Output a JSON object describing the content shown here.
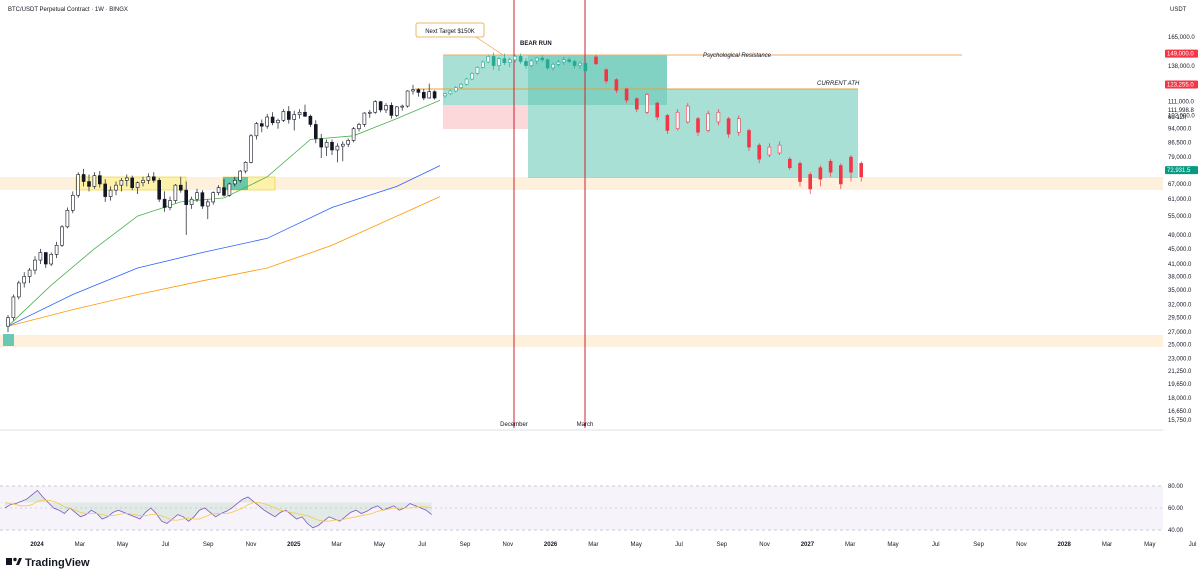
{
  "header": {
    "title": "BTC/USDT Perpetual Contract · 1W · BINGX",
    "currency": "USDT"
  },
  "branding": {
    "name": "TradingView"
  },
  "chart_data": {
    "type": "candlestick",
    "title": "BTC/USDT Perpetual Contract · 1W · BINGX",
    "price_axis": {
      "scale": "log",
      "ticks": [
        "165,000.0",
        "149,000.0",
        "138,000.0",
        "123,000.0",
        "111,000.0",
        "102,000.0",
        "94,000.0",
        "86,500.0",
        "79,000.0",
        "73,000.0",
        "67,000.0",
        "61,000.0",
        "55,000.0",
        "49,000.0",
        "45,000.0",
        "41,000.0",
        "38,000.0",
        "35,000.0",
        "32,000.0",
        "29,500.0",
        "27,000.0",
        "25,000.0",
        "23,000.0",
        "21,250.0",
        "19,650.0",
        "18,000.0",
        "16,650.0",
        "15,750.0"
      ],
      "price_tags": [
        {
          "value": "149,000.0",
          "color": "#f23645"
        },
        {
          "value": "123,255.0",
          "color": "#f23645"
        },
        {
          "value": "72,931.5",
          "color": "#089981"
        }
      ],
      "hint_lines": [
        "111,998.8",
        "6d 12h"
      ]
    },
    "time_axis": [
      "2024",
      "Mar",
      "May",
      "Jul",
      "Sep",
      "Nov",
      "2025",
      "Mar",
      "May",
      "Jul",
      "Sep",
      "Nov",
      "2026",
      "Mar",
      "May",
      "Jul",
      "Sep",
      "Nov",
      "2027",
      "Mar",
      "May",
      "Jul",
      "Sep",
      "Nov",
      "2028",
      "Mar",
      "May",
      "Jul"
    ],
    "annotations": {
      "next_target": "Next Target $150K",
      "bear_run": "BEAR RUN",
      "psych_resistance": "Psychological Resistance",
      "current_ath": "CURRENT ATH",
      "december": "December",
      "march": "March"
    },
    "historical_candles": [
      [
        28000,
        30000,
        27000,
        29500
      ],
      [
        29500,
        34000,
        29000,
        33500
      ],
      [
        33500,
        37000,
        33000,
        36500
      ],
      [
        36500,
        39000,
        35500,
        38000
      ],
      [
        38000,
        40000,
        36500,
        39500
      ],
      [
        39500,
        43000,
        38500,
        42000
      ],
      [
        42000,
        45000,
        41000,
        44000
      ],
      [
        44000,
        42500,
        40000,
        41000
      ],
      [
        41000,
        44000,
        40500,
        43500
      ],
      [
        43500,
        47000,
        42500,
        46000
      ],
      [
        46000,
        52000,
        45500,
        51500
      ],
      [
        51500,
        58000,
        51000,
        57000
      ],
      [
        57000,
        64000,
        56000,
        62500
      ],
      [
        62500,
        72000,
        61500,
        71000
      ],
      [
        71000,
        73500,
        66000,
        68000
      ],
      [
        68000,
        71000,
        64000,
        66000
      ],
      [
        66000,
        72000,
        65000,
        70500
      ],
      [
        70500,
        72500,
        65500,
        67000
      ],
      [
        67000,
        69000,
        60000,
        62000
      ],
      [
        62000,
        66000,
        60500,
        64500
      ],
      [
        64500,
        68000,
        62500,
        66500
      ],
      [
        66500,
        69500,
        64000,
        68500
      ],
      [
        68500,
        71000,
        66000,
        69500
      ],
      [
        69500,
        70500,
        64500,
        65500
      ],
      [
        65500,
        68000,
        63000,
        67500
      ],
      [
        67500,
        70000,
        66000,
        68500
      ],
      [
        68500,
        71500,
        67000,
        70000
      ],
      [
        70000,
        72000,
        67500,
        68500
      ],
      [
        68500,
        69500,
        60000,
        61000
      ],
      [
        61000,
        64000,
        56500,
        58000
      ],
      [
        58000,
        62000,
        57000,
        60500
      ],
      [
        60500,
        67000,
        59500,
        66500
      ],
      [
        66500,
        70000,
        63500,
        64500
      ],
      [
        64500,
        68000,
        49000,
        59000
      ],
      [
        59000,
        62000,
        57500,
        61000
      ],
      [
        61000,
        65000,
        60000,
        63500
      ],
      [
        63500,
        64500,
        57500,
        58500
      ],
      [
        58500,
        61000,
        54000,
        60000
      ],
      [
        60000,
        64000,
        59000,
        63500
      ],
      [
        63500,
        66500,
        62500,
        65500
      ],
      [
        65500,
        69000,
        62000,
        62500
      ],
      [
        62500,
        67500,
        62000,
        67000
      ],
      [
        67000,
        70000,
        66000,
        68500
      ],
      [
        68500,
        73000,
        67500,
        72500
      ],
      [
        72500,
        77000,
        71500,
        76500
      ],
      [
        76500,
        91000,
        76000,
        90000
      ],
      [
        90000,
        98000,
        88000,
        97000
      ],
      [
        97000,
        99500,
        92000,
        95500
      ],
      [
        95500,
        103000,
        94000,
        101000
      ],
      [
        101000,
        104000,
        96000,
        97500
      ],
      [
        97500,
        100000,
        94000,
        99000
      ],
      [
        99000,
        106000,
        98000,
        104500
      ],
      [
        104500,
        108000,
        97000,
        99500
      ],
      [
        99500,
        105000,
        93000,
        102500
      ],
      [
        102500,
        106000,
        100000,
        104000
      ],
      [
        104000,
        109000,
        101000,
        101500
      ],
      [
        101500,
        102500,
        95000,
        96500
      ],
      [
        96500,
        99000,
        86000,
        88500
      ],
      [
        88500,
        91000,
        78500,
        84000
      ],
      [
        84000,
        88000,
        79500,
        86500
      ],
      [
        86500,
        88000,
        80000,
        82500
      ],
      [
        82500,
        86000,
        76500,
        84500
      ],
      [
        84500,
        87000,
        77000,
        85500
      ],
      [
        85500,
        88500,
        84000,
        87500
      ],
      [
        87500,
        95000,
        86500,
        94000
      ],
      [
        94000,
        97500,
        92500,
        96500
      ],
      [
        96500,
        104000,
        95000,
        103500
      ],
      [
        103500,
        105500,
        100500,
        104000
      ],
      [
        104000,
        112000,
        103000,
        111000
      ],
      [
        111000,
        111500,
        104000,
        105500
      ],
      [
        105500,
        110000,
        103500,
        108500
      ],
      [
        108500,
        110500,
        100000,
        102000
      ],
      [
        102000,
        108000,
        101000,
        107500
      ],
      [
        107500,
        109000,
        105000,
        108000
      ],
      [
        108000,
        119000,
        107000,
        118500
      ],
      [
        118500,
        123000,
        116000,
        119500
      ],
      [
        119500,
        120500,
        114500,
        117500
      ],
      [
        117500,
        120000,
        112000,
        113500
      ],
      [
        113500,
        124000,
        113000,
        118000
      ],
      [
        118000,
        119000,
        112500,
        113500
      ]
    ],
    "projected_candles": [
      [
        115000,
        117000,
        113500,
        116500
      ],
      [
        116500,
        119500,
        115500,
        118500
      ],
      [
        118500,
        122000,
        117500,
        121000
      ],
      [
        121000,
        124500,
        120000,
        123500
      ],
      [
        123500,
        128500,
        122500,
        127500
      ],
      [
        127500,
        133000,
        126500,
        132000
      ],
      [
        132000,
        138000,
        131000,
        137000
      ],
      [
        137000,
        143000,
        136000,
        141500
      ],
      [
        141500,
        148000,
        140500,
        146500
      ],
      [
        146500,
        150000,
        135000,
        138500
      ],
      [
        138500,
        146000,
        134000,
        144500
      ],
      [
        144500,
        149000,
        139000,
        141000
      ],
      [
        141000,
        145500,
        137000,
        143500
      ],
      [
        143500,
        148000,
        141000,
        146500
      ],
      [
        146500,
        149000,
        140000,
        142000
      ],
      [
        142000,
        145000,
        136000,
        138500
      ],
      [
        138500,
        144000,
        137000,
        142500
      ],
      [
        142500,
        146000,
        139500,
        145000
      ],
      [
        145000,
        147500,
        141500,
        143500
      ],
      [
        143500,
        144500,
        135000,
        136500
      ],
      [
        136500,
        141000,
        134500,
        139500
      ],
      [
        139500,
        143500,
        137500,
        141500
      ],
      [
        141500,
        146000,
        139000,
        143500
      ],
      [
        143500,
        145500,
        140500,
        142000
      ],
      [
        142000,
        143500,
        136000,
        138500
      ],
      [
        138500,
        142000,
        135500,
        140500
      ],
      [
        140500,
        141500,
        132000,
        134000
      ]
    ],
    "bear_candles": [
      [
        146000,
        148000,
        139000,
        140000
      ],
      [
        135000,
        136000,
        124000,
        126000
      ],
      [
        127000,
        128000,
        117000,
        119000
      ],
      [
        120000,
        121000,
        110000,
        112000
      ],
      [
        113000,
        114000,
        104000,
        106000
      ],
      [
        104000,
        117000,
        103000,
        116000
      ],
      [
        110000,
        111000,
        99000,
        101000
      ],
      [
        102000,
        103000,
        91000,
        93000
      ],
      [
        94000,
        106000,
        93000,
        104000
      ],
      [
        98000,
        110000,
        97000,
        108000
      ],
      [
        100000,
        101000,
        90000,
        92000
      ],
      [
        93000,
        105000,
        92000,
        103000
      ],
      [
        98000,
        106000,
        96000,
        104000
      ],
      [
        100000,
        101000,
        89000,
        91000
      ],
      [
        92000,
        102000,
        90000,
        100000
      ],
      [
        93000,
        94000,
        82000,
        84000
      ],
      [
        85000,
        86000,
        76000,
        78000
      ],
      [
        80000,
        86000,
        79000,
        84000
      ],
      [
        81000,
        87000,
        80000,
        85000
      ],
      [
        78000,
        79000,
        73000,
        74000
      ],
      [
        76000,
        77000,
        66000,
        68000
      ],
      [
        71000,
        72000,
        63000,
        65000
      ],
      [
        74000,
        75000,
        66000,
        69000
      ],
      [
        77000,
        78000,
        70000,
        72000
      ],
      [
        75000,
        76000,
        65000,
        67000
      ],
      [
        79000,
        80000,
        68000,
        72000
      ],
      [
        76000,
        77000,
        68000,
        70000
      ]
    ],
    "moving_averages": {
      "ma_green": [
        [
          0,
          28000
        ],
        [
          8,
          36000
        ],
        [
          16,
          45000
        ],
        [
          24,
          55000
        ],
        [
          32,
          60000
        ],
        [
          40,
          61500
        ],
        [
          48,
          70000
        ],
        [
          56,
          88000
        ],
        [
          64,
          90000
        ],
        [
          72,
          100000
        ],
        [
          80,
          112000
        ]
      ],
      "ma_blue": [
        [
          0,
          28000
        ],
        [
          12,
          34000
        ],
        [
          24,
          40000
        ],
        [
          36,
          44000
        ],
        [
          48,
          48000
        ],
        [
          60,
          58000
        ],
        [
          72,
          66000
        ],
        [
          80,
          75000
        ]
      ],
      "ma_orange": [
        [
          0,
          28000
        ],
        [
          12,
          31000
        ],
        [
          24,
          34000
        ],
        [
          36,
          37000
        ],
        [
          48,
          40000
        ],
        [
          60,
          46000
        ],
        [
          72,
          55000
        ],
        [
          80,
          62000
        ]
      ]
    },
    "rsi": {
      "ticks": [
        "80.00",
        "60.00",
        "40.00"
      ],
      "line_values": [
        60,
        63,
        64,
        66,
        68,
        72,
        76,
        70,
        65,
        60,
        58,
        55,
        60,
        56,
        52,
        54,
        58,
        55,
        50,
        52,
        56,
        58,
        56,
        54,
        52,
        50,
        56,
        60,
        55,
        48,
        46,
        50,
        54,
        52,
        48,
        52,
        58,
        60,
        56,
        52,
        55,
        57,
        60,
        64,
        68,
        70,
        66,
        62,
        58,
        55,
        52,
        56,
        58,
        54,
        50,
        52,
        46,
        42,
        44,
        48,
        52,
        50,
        48,
        52,
        56,
        58,
        55,
        57,
        60,
        62,
        58,
        60,
        62,
        58,
        60,
        64,
        62,
        60,
        58,
        54
      ],
      "signal_values": [
        65,
        64,
        63,
        62,
        62,
        63,
        66,
        67,
        67,
        66,
        64,
        61,
        60,
        58,
        56,
        55,
        55,
        55,
        54,
        53,
        53,
        54,
        55,
        55,
        54,
        53,
        53,
        54,
        54,
        53,
        51,
        49,
        49,
        50,
        51,
        50,
        50,
        52,
        54,
        55,
        55,
        55,
        56,
        58,
        60,
        63,
        65,
        65,
        64,
        62,
        60,
        58,
        57,
        56,
        55,
        54,
        53,
        51,
        49,
        48,
        48,
        49,
        49,
        50,
        51,
        52,
        53,
        54,
        55,
        57,
        58,
        59,
        60,
        60,
        60,
        60,
        61,
        61,
        61,
        60
      ]
    }
  }
}
